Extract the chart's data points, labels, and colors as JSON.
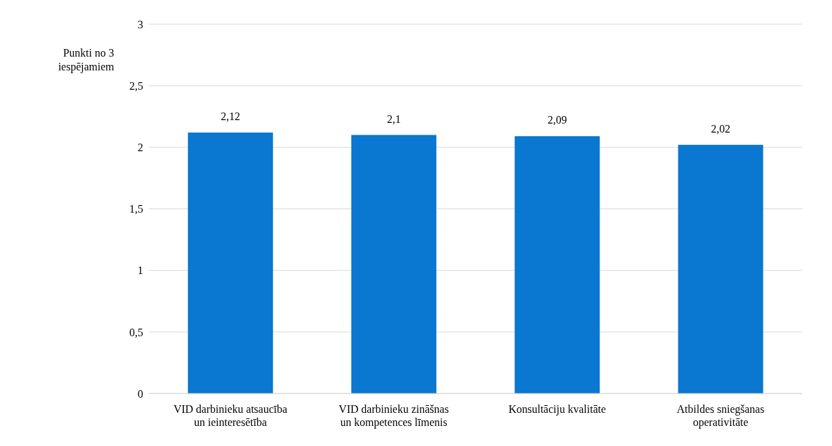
{
  "chart_data": {
    "type": "bar",
    "ylabel": "Punkti no 3 iespējamiem",
    "categories": [
      "VID darbinieku atsaucība un ieinteresētība",
      "VID darbinieku zināšnas un kompetences līmenis",
      "Konsultāciju kvalitāte",
      "Atbildes sniegšanas operativitāte"
    ],
    "values": [
      2.12,
      2.1,
      2.09,
      2.02
    ],
    "color": "#0a77d0",
    "ylim": [
      0,
      3
    ],
    "yticks": [
      0,
      {
        "value": 0.5,
        "label": "0,5"
      },
      1,
      {
        "value": 1.5,
        "label": "1,5"
      },
      2,
      {
        "value": 2.5,
        "label": "2,5"
      },
      3
    ],
    "grid": "y",
    "value_labels": [
      "2,12",
      "2,1",
      "2,09",
      "2,02"
    ]
  }
}
